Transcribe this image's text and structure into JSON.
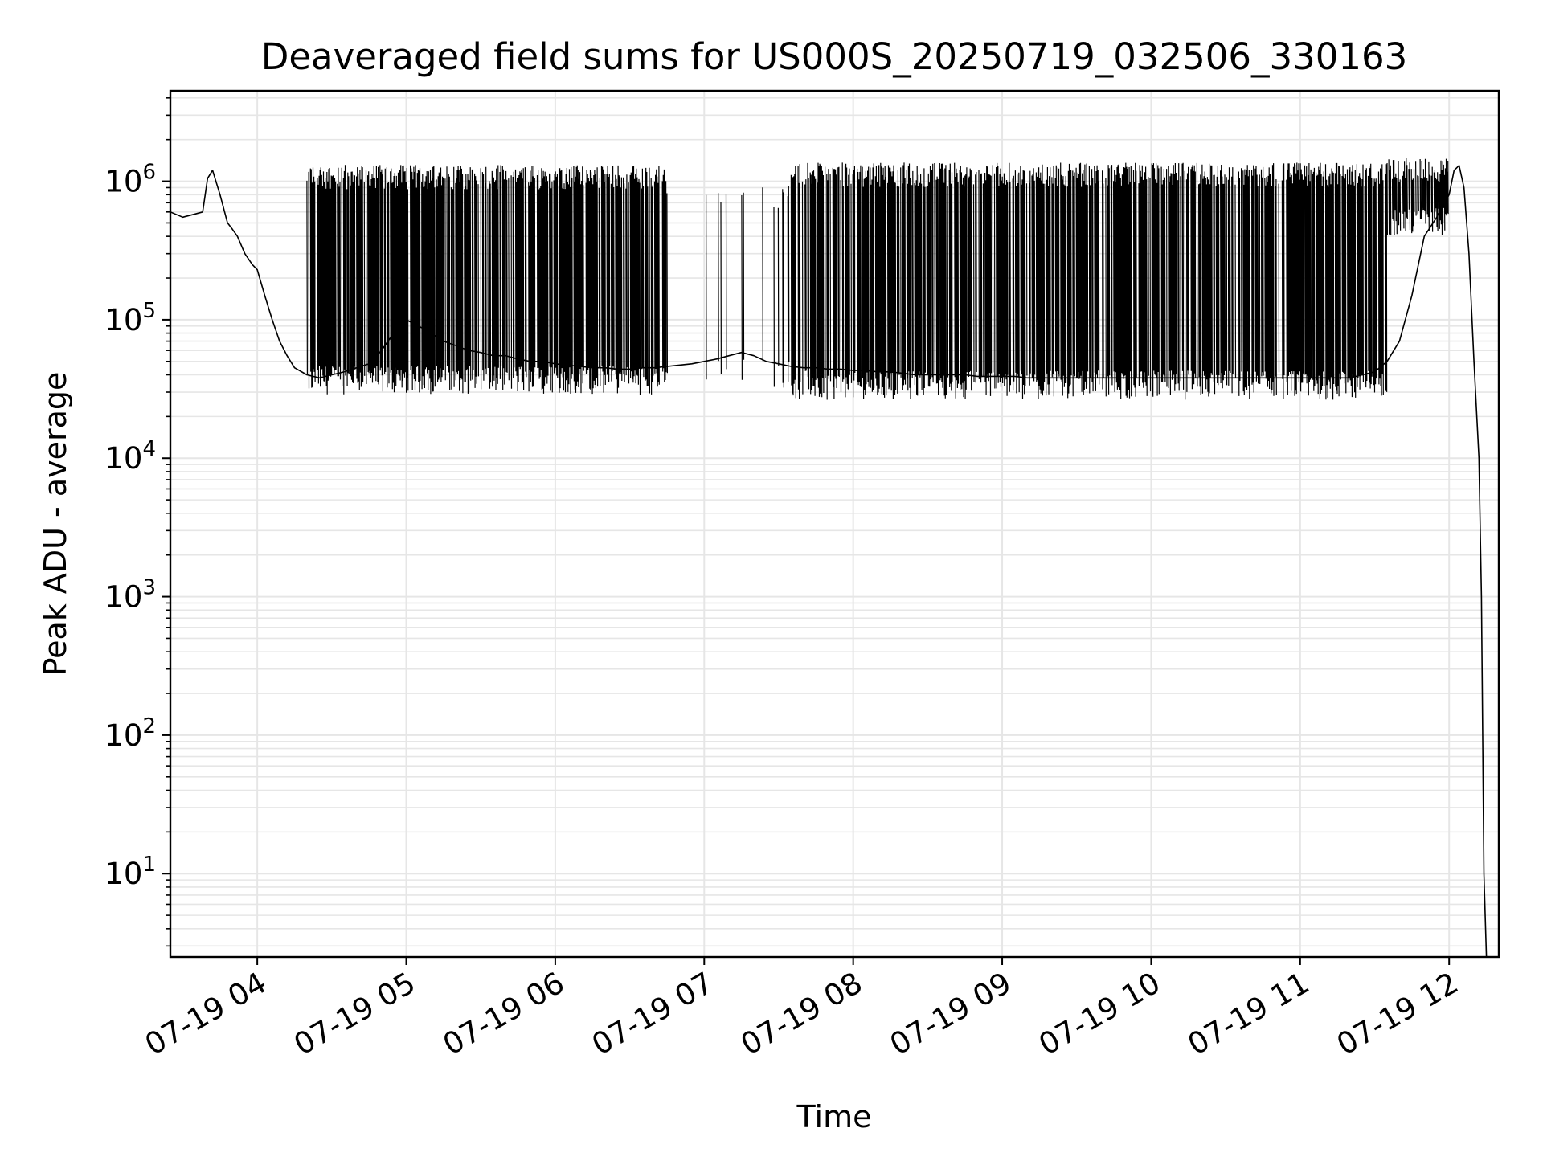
{
  "chart_data": {
    "type": "line",
    "title": "Deaveraged field sums for US000S_20250719_032506_330163",
    "xlabel": "Time",
    "ylabel": "Peak ADU - average",
    "yscale": "log",
    "ylim": [
      2.5,
      4500000
    ],
    "xlim": [
      "2025-07-19 03:25",
      "2025-07-19 12:20"
    ],
    "grid": true,
    "line_color": "#000000",
    "grid_color": "#e6e6e6",
    "x_ticks": [
      {
        "value": "2025-07-19 04:00",
        "label": "07-19 04"
      },
      {
        "value": "2025-07-19 05:00",
        "label": "07-19 05"
      },
      {
        "value": "2025-07-19 06:00",
        "label": "07-19 06"
      },
      {
        "value": "2025-07-19 07:00",
        "label": "07-19 07"
      },
      {
        "value": "2025-07-19 08:00",
        "label": "07-19 08"
      },
      {
        "value": "2025-07-19 09:00",
        "label": "07-19 09"
      },
      {
        "value": "2025-07-19 10:00",
        "label": "07-19 10"
      },
      {
        "value": "2025-07-19 11:00",
        "label": "07-19 11"
      },
      {
        "value": "2025-07-19 12:00",
        "label": "07-19 12"
      }
    ],
    "y_ticks": [
      {
        "value": 10,
        "base": "10",
        "exp": "1"
      },
      {
        "value": 100,
        "base": "10",
        "exp": "2"
      },
      {
        "value": 1000,
        "base": "10",
        "exp": "3"
      },
      {
        "value": 10000,
        "base": "10",
        "exp": "4"
      },
      {
        "value": 100000,
        "base": "10",
        "exp": "5"
      },
      {
        "value": 1000000,
        "base": "10",
        "exp": "6"
      }
    ],
    "series": [
      {
        "x": [
          "2025-07-19 03:25",
          "2025-07-19 03:30",
          "2025-07-19 03:35",
          "2025-07-19 03:38",
          "2025-07-19 03:40",
          "2025-07-19 03:42",
          "2025-07-19 03:45",
          "2025-07-19 03:48",
          "2025-07-19 03:50",
          "2025-07-19 03:52",
          "2025-07-19 03:55",
          "2025-07-19 03:58",
          "2025-07-19 04:00",
          "2025-07-19 04:03",
          "2025-07-19 04:06",
          "2025-07-19 04:09",
          "2025-07-19 04:12",
          "2025-07-19 04:15",
          "2025-07-19 04:20",
          "2025-07-19 04:25",
          "2025-07-19 04:30",
          "2025-07-19 04:35",
          "2025-07-19 04:40",
          "2025-07-19 04:45",
          "2025-07-19 04:50",
          "2025-07-19 04:55",
          "2025-07-19 05:00",
          "2025-07-19 05:05",
          "2025-07-19 05:10",
          "2025-07-19 05:15",
          "2025-07-19 05:20",
          "2025-07-19 05:25",
          "2025-07-19 05:30",
          "2025-07-19 05:35",
          "2025-07-19 05:40",
          "2025-07-19 05:45",
          "2025-07-19 05:50",
          "2025-07-19 05:55",
          "2025-07-19 06:00",
          "2025-07-19 06:05",
          "2025-07-19 06:10",
          "2025-07-19 06:15",
          "2025-07-19 06:20",
          "2025-07-19 06:25",
          "2025-07-19 06:30",
          "2025-07-19 06:35",
          "2025-07-19 06:40",
          "2025-07-19 06:45",
          "2025-07-19 06:50",
          "2025-07-19 06:55",
          "2025-07-19 07:00",
          "2025-07-19 07:05",
          "2025-07-19 07:10",
          "2025-07-19 07:15",
          "2025-07-19 07:20",
          "2025-07-19 07:25",
          "2025-07-19 07:30",
          "2025-07-19 07:35",
          "2025-07-19 07:40",
          "2025-07-19 07:45",
          "2025-07-19 07:50",
          "2025-07-19 07:55",
          "2025-07-19 08:00",
          "2025-07-19 08:05",
          "2025-07-19 08:10",
          "2025-07-19 08:15",
          "2025-07-19 08:20",
          "2025-07-19 08:25",
          "2025-07-19 08:30",
          "2025-07-19 08:35",
          "2025-07-19 08:40",
          "2025-07-19 08:45",
          "2025-07-19 08:50",
          "2025-07-19 08:55",
          "2025-07-19 09:00",
          "2025-07-19 09:05",
          "2025-07-19 09:10",
          "2025-07-19 09:15",
          "2025-07-19 09:20",
          "2025-07-19 09:25",
          "2025-07-19 09:30",
          "2025-07-19 09:35",
          "2025-07-19 09:40",
          "2025-07-19 09:45",
          "2025-07-19 09:50",
          "2025-07-19 09:55",
          "2025-07-19 10:00",
          "2025-07-19 10:05",
          "2025-07-19 10:10",
          "2025-07-19 10:15",
          "2025-07-19 10:20",
          "2025-07-19 10:25",
          "2025-07-19 10:30",
          "2025-07-19 10:35",
          "2025-07-19 10:40",
          "2025-07-19 10:45",
          "2025-07-19 10:50",
          "2025-07-19 10:55",
          "2025-07-19 11:00",
          "2025-07-19 11:05",
          "2025-07-19 11:10",
          "2025-07-19 11:15",
          "2025-07-19 11:20",
          "2025-07-19 11:25",
          "2025-07-19 11:30",
          "2025-07-19 11:35",
          "2025-07-19 11:40",
          "2025-07-19 11:45",
          "2025-07-19 11:50",
          "2025-07-19 11:55",
          "2025-07-19 12:00",
          "2025-07-19 12:02",
          "2025-07-19 12:04",
          "2025-07-19 12:06",
          "2025-07-19 12:08",
          "2025-07-19 12:10",
          "2025-07-19 12:12",
          "2025-07-19 12:13",
          "2025-07-19 12:14",
          "2025-07-19 12:15"
        ],
        "y": [
          600000,
          550000,
          580000,
          600000,
          1050000,
          1200000,
          800000,
          500000,
          450000,
          400000,
          300000,
          250000,
          230000,
          150000,
          100000,
          70000,
          55000,
          45000,
          40000,
          38000,
          40000,
          42000,
          45000,
          48000,
          60000,
          80000,
          100000,
          90000,
          80000,
          70000,
          65000,
          60000,
          58000,
          55000,
          55000,
          52000,
          50000,
          50000,
          48000,
          47000,
          46000,
          45000,
          45000,
          44000,
          44000,
          45000,
          45000,
          46000,
          47000,
          48000,
          50000,
          52000,
          55000,
          58000,
          55000,
          50000,
          48000,
          46000,
          45000,
          45000,
          44000,
          44000,
          43000,
          43000,
          42000,
          42000,
          41000,
          40000,
          40000,
          40000,
          40000,
          40000,
          39000,
          39000,
          39000,
          39000,
          38000,
          38000,
          38000,
          38000,
          38000,
          38000,
          38000,
          38000,
          38000,
          38000,
          38000,
          38000,
          38000,
          38000,
          38000,
          38000,
          38000,
          38000,
          38000,
          38000,
          38000,
          38000,
          38000,
          38000,
          38000,
          38000,
          38000,
          40000,
          42000,
          50000,
          70000,
          150000,
          400000,
          550000,
          800000,
          1200000,
          1300000,
          900000,
          300000,
          50000,
          10000,
          1000,
          10,
          2.5
        ]
      }
    ]
  }
}
